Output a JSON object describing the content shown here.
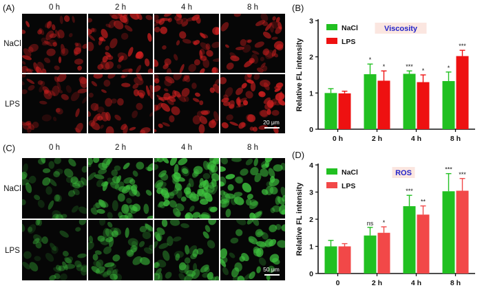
{
  "panels": {
    "A": {
      "label": "(A)",
      "columns": [
        "0 h",
        "2 h",
        "4 h",
        "8 h"
      ],
      "rows": [
        "NaCl",
        "LPS"
      ],
      "scale_bar": "20 μm",
      "tint": "#d02020"
    },
    "C": {
      "label": "(C)",
      "columns": [
        "0 h",
        "2 h",
        "4 h",
        "8 h"
      ],
      "rows": [
        "NaCl",
        "LPS"
      ],
      "scale_bar": "50 μm",
      "tint": "#3ec43e"
    },
    "B": {
      "label": "(B)"
    },
    "D": {
      "label": "(D)"
    }
  },
  "chart_data": [
    {
      "id": "B",
      "type": "bar",
      "title": "Viscosity",
      "title_color": "#2323c8",
      "title_bg": "#fbe6e0",
      "ylabel": "Relative FL intensity",
      "xlabel": "",
      "categories": [
        "0 h",
        "2 h",
        "4 h",
        "8 h"
      ],
      "ylim": [
        0,
        3
      ],
      "yticks": [
        0,
        1,
        2,
        3
      ],
      "legend_position": "top-left",
      "series": [
        {
          "name": "NaCl",
          "color": "#21c021",
          "values": [
            1.0,
            1.52,
            1.53,
            1.33
          ],
          "errors": [
            0.12,
            0.28,
            0.08,
            0.25
          ],
          "significance": [
            "",
            "*",
            "***",
            "*"
          ]
        },
        {
          "name": "LPS",
          "color": "#ee1111",
          "values": [
            0.99,
            1.34,
            1.3,
            2.02
          ],
          "errors": [
            0.06,
            0.27,
            0.2,
            0.16
          ],
          "significance": [
            "",
            "*",
            "*",
            "***"
          ]
        }
      ]
    },
    {
      "id": "D",
      "type": "bar",
      "title": "ROS",
      "title_color": "#2323c8",
      "title_bg": "#fbe6e0",
      "ylabel": "Relative FL intensity",
      "xlabel": "",
      "categories": [
        "0",
        "2 h",
        "4 h",
        "8 h"
      ],
      "ylim": [
        0,
        4
      ],
      "yticks": [
        0,
        1,
        2,
        3,
        4
      ],
      "legend_position": "top-left",
      "series": [
        {
          "name": "NaCl",
          "color": "#21c021",
          "values": [
            1.0,
            1.4,
            2.48,
            3.03
          ],
          "errors": [
            0.22,
            0.3,
            0.4,
            0.65
          ],
          "significance": [
            "",
            "ns",
            "***",
            "***"
          ]
        },
        {
          "name": "LPS",
          "color": "#f24848",
          "values": [
            1.0,
            1.5,
            2.17,
            3.05
          ],
          "errors": [
            0.1,
            0.22,
            0.32,
            0.45
          ],
          "significance": [
            "",
            "*",
            "**",
            "***"
          ]
        }
      ]
    }
  ]
}
